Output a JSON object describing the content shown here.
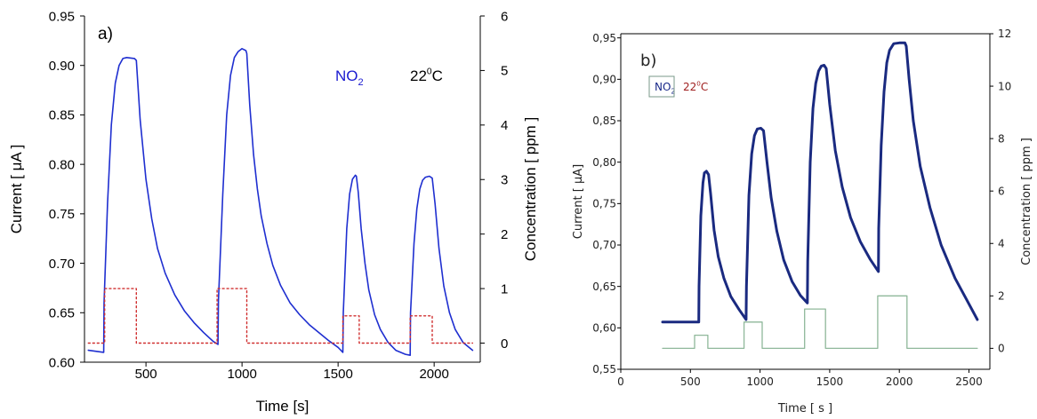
{
  "chart_data": [
    {
      "type": "line",
      "panel_label": "a)",
      "xlabel": "Time [s]",
      "ylabel": "Current [ μA ]",
      "y2label": "Concentration [ ppm ]",
      "xlim": [
        180,
        2240
      ],
      "ylim": [
        0.6,
        0.95
      ],
      "y2lim": [
        -0.35,
        6
      ],
      "xticks": [
        500,
        1000,
        1500,
        2000
      ],
      "yticks": [
        0.6,
        0.65,
        0.7,
        0.75,
        0.8,
        0.85,
        0.9,
        0.95
      ],
      "y2ticks": [
        0,
        1,
        2,
        3,
        4,
        5,
        6
      ],
      "ytick_labels": [
        "0.60",
        "0.65",
        "0.70",
        "0.75",
        "0.80",
        "0.85",
        "0.90",
        "0.95"
      ],
      "y2tick_labels": [
        "0",
        "1",
        "2",
        "3",
        "4",
        "5",
        "6"
      ],
      "annotations": [
        {
          "text": "NO",
          "sub": "2",
          "color": "#1a1ad0"
        },
        {
          "text": "22",
          "sup": "0",
          "tail": "C",
          "color": "#000000"
        }
      ],
      "series": [
        {
          "axis": "y",
          "color": "#1f2fd0",
          "style": "solid",
          "x": [
            200,
            280,
            282,
            300,
            320,
            340,
            360,
            380,
            400,
            440,
            450,
            470,
            500,
            530,
            560,
            600,
            650,
            700,
            750,
            800,
            850,
            875,
            877,
            900,
            920,
            940,
            960,
            980,
            1000,
            1020,
            1025,
            1040,
            1060,
            1080,
            1100,
            1130,
            1160,
            1200,
            1250,
            1300,
            1350,
            1400,
            1450,
            1500,
            1525,
            1527,
            1545,
            1560,
            1575,
            1590,
            1595,
            1605,
            1620,
            1640,
            1660,
            1690,
            1720,
            1760,
            1800,
            1850,
            1875,
            1877,
            1895,
            1910,
            1925,
            1940,
            1955,
            1975,
            1990,
            2005,
            2025,
            2050,
            2080,
            2110,
            2150,
            2200
          ],
          "y": [
            0.612,
            0.61,
            0.66,
            0.76,
            0.84,
            0.882,
            0.9,
            0.907,
            0.908,
            0.907,
            0.905,
            0.845,
            0.785,
            0.745,
            0.715,
            0.69,
            0.668,
            0.652,
            0.64,
            0.63,
            0.621,
            0.618,
            0.662,
            0.77,
            0.85,
            0.89,
            0.908,
            0.914,
            0.917,
            0.915,
            0.912,
            0.86,
            0.81,
            0.775,
            0.748,
            0.72,
            0.698,
            0.678,
            0.66,
            0.648,
            0.638,
            0.63,
            0.622,
            0.615,
            0.61,
            0.65,
            0.735,
            0.77,
            0.785,
            0.789,
            0.788,
            0.772,
            0.735,
            0.7,
            0.673,
            0.648,
            0.633,
            0.62,
            0.612,
            0.608,
            0.607,
            0.65,
            0.72,
            0.755,
            0.775,
            0.784,
            0.787,
            0.788,
            0.786,
            0.76,
            0.715,
            0.677,
            0.65,
            0.633,
            0.62,
            0.612
          ]
        },
        {
          "axis": "y2",
          "color": "#d03030",
          "style": "dotted",
          "x": [
            200,
            285,
            285,
            450,
            450,
            870,
            870,
            1025,
            1025,
            1525,
            1525,
            1610,
            1610,
            1875,
            1875,
            1990,
            1990,
            2200
          ],
          "y": [
            0,
            0,
            1,
            1,
            0,
            0,
            1,
            1,
            0,
            0,
            0.5,
            0.5,
            0,
            0,
            0.5,
            0.5,
            0,
            0
          ]
        }
      ]
    },
    {
      "type": "line",
      "panel_label": "b)",
      "xlabel": "Time [ s ]",
      "ylabel": "Current  [ μA]",
      "y2label": "Concentration [ ppm ]",
      "xlim": [
        0,
        2650
      ],
      "ylim": [
        0.55,
        0.955
      ],
      "y2lim": [
        -0.8,
        12
      ],
      "xticks": [
        0,
        500,
        1000,
        1500,
        2000,
        2500
      ],
      "yticks": [
        0.55,
        0.6,
        0.65,
        0.7,
        0.75,
        0.8,
        0.85,
        0.9,
        0.95
      ],
      "y2ticks": [
        0,
        2,
        4,
        6,
        8,
        10,
        12
      ],
      "ytick_labels": [
        "0,55",
        "0,60",
        "0,65",
        "0,70",
        "0,75",
        "0,80",
        "0,85",
        "0,90",
        "0,95"
      ],
      "y2tick_labels": [
        "0",
        "2",
        "4",
        "6",
        "8",
        "10",
        "12"
      ],
      "annotations": [
        {
          "text": "NO",
          "sub": "2",
          "color": "#1a2a8a"
        },
        {
          "text": "22",
          "sup": "0",
          "tail": "C",
          "color": "#a02020"
        }
      ],
      "legend_location": "top-left",
      "series": [
        {
          "axis": "y",
          "color": "#1a2a80",
          "style": "solid",
          "x": [
            300,
            560,
            562,
            575,
            590,
            600,
            615,
            630,
            645,
            670,
            700,
            740,
            790,
            850,
            900,
            902,
            920,
            940,
            960,
            980,
            1005,
            1025,
            1050,
            1080,
            1120,
            1170,
            1230,
            1290,
            1340,
            1342,
            1360,
            1380,
            1400,
            1420,
            1440,
            1460,
            1475,
            1500,
            1540,
            1590,
            1650,
            1720,
            1790,
            1850,
            1852,
            1870,
            1890,
            1910,
            1930,
            1960,
            2000,
            2040,
            2050,
            2070,
            2100,
            2150,
            2220,
            2300,
            2400,
            2480,
            2560
          ],
          "y": [
            0.607,
            0.607,
            0.65,
            0.735,
            0.775,
            0.787,
            0.789,
            0.785,
            0.762,
            0.718,
            0.686,
            0.66,
            0.638,
            0.622,
            0.61,
            0.65,
            0.76,
            0.81,
            0.832,
            0.84,
            0.841,
            0.838,
            0.8,
            0.757,
            0.717,
            0.682,
            0.656,
            0.639,
            0.63,
            0.68,
            0.8,
            0.865,
            0.895,
            0.91,
            0.916,
            0.917,
            0.913,
            0.87,
            0.814,
            0.77,
            0.733,
            0.704,
            0.683,
            0.668,
            0.72,
            0.82,
            0.885,
            0.92,
            0.935,
            0.943,
            0.944,
            0.944,
            0.94,
            0.9,
            0.85,
            0.795,
            0.745,
            0.7,
            0.66,
            0.635,
            0.61
          ]
        },
        {
          "axis": "y2",
          "color": "#8fb89a",
          "style": "solid",
          "x": [
            300,
            530,
            530,
            625,
            625,
            885,
            885,
            1015,
            1015,
            1320,
            1320,
            1470,
            1470,
            1845,
            1845,
            2055,
            2055,
            2560
          ],
          "y": [
            0,
            0,
            0.5,
            0.5,
            0,
            0,
            1,
            1,
            0,
            0,
            1.5,
            1.5,
            0,
            0,
            2,
            2,
            0,
            0
          ]
        }
      ]
    }
  ]
}
